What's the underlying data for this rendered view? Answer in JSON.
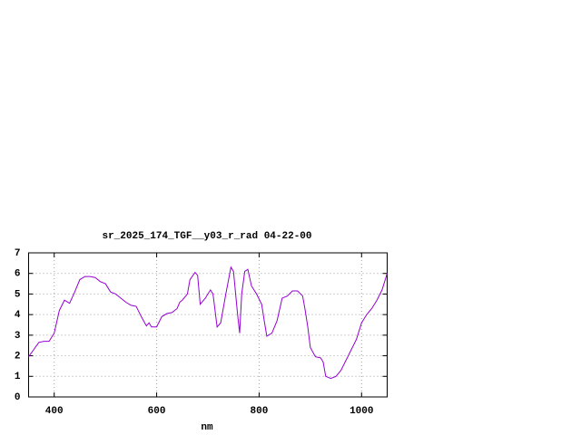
{
  "chart_data": {
    "type": "line",
    "title": "sr_2025_174_TGF__y03_r_rad 04-22-00",
    "x_label": "nm",
    "xlim": [
      350,
      1050
    ],
    "ylim": [
      0,
      7
    ],
    "xticks": [
      400,
      600,
      800,
      1000
    ],
    "yticks": [
      0,
      1,
      2,
      3,
      4,
      5,
      6,
      7
    ],
    "grid": true,
    "x": [
      350,
      360,
      370,
      380,
      390,
      395,
      400,
      410,
      420,
      430,
      440,
      450,
      460,
      470,
      480,
      490,
      500,
      510,
      520,
      530,
      540,
      550,
      560,
      570,
      580,
      585,
      590,
      600,
      610,
      620,
      630,
      640,
      645,
      650,
      660,
      665,
      675,
      680,
      685,
      695,
      705,
      710,
      718,
      725,
      735,
      745,
      750,
      758,
      762,
      766,
      772,
      778,
      785,
      795,
      805,
      810,
      815,
      825,
      835,
      845,
      855,
      865,
      875,
      885,
      890,
      895,
      900,
      910,
      920,
      925,
      930,
      940,
      950,
      960,
      970,
      980,
      990,
      1000,
      1010,
      1020,
      1030,
      1040,
      1045,
      1050
    ],
    "series": [
      {
        "color": "#9400d3",
        "values": [
          1.95,
          2.3,
          2.65,
          2.7,
          2.7,
          2.9,
          3.1,
          4.2,
          4.7,
          4.55,
          5.1,
          5.7,
          5.85,
          5.85,
          5.8,
          5.6,
          5.5,
          5.1,
          5.0,
          4.8,
          4.6,
          4.45,
          4.4,
          3.9,
          3.45,
          3.6,
          3.4,
          3.4,
          3.9,
          4.05,
          4.1,
          4.3,
          4.6,
          4.7,
          5.0,
          5.7,
          6.05,
          5.9,
          4.5,
          4.8,
          5.2,
          5.0,
          3.4,
          3.6,
          5.0,
          6.3,
          6.1,
          4.0,
          3.1,
          5.0,
          6.1,
          6.2,
          5.4,
          5.0,
          4.5,
          3.7,
          2.95,
          3.1,
          3.7,
          4.8,
          4.9,
          5.15,
          5.15,
          4.9,
          4.2,
          3.4,
          2.4,
          1.95,
          1.9,
          1.7,
          1.0,
          0.9,
          1.0,
          1.3,
          1.8,
          2.3,
          2.8,
          3.6,
          4.0,
          4.3,
          4.7,
          5.2,
          5.6,
          6.0
        ]
      }
    ]
  }
}
